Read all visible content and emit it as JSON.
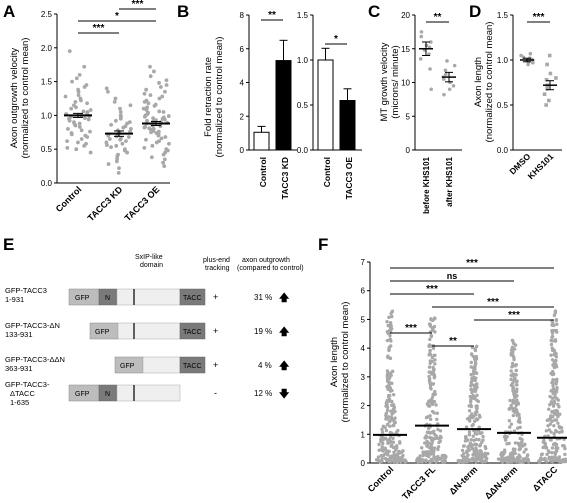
{
  "chart_data": [
    {
      "panel": "A",
      "type": "scatter",
      "ylabel": "Axon outgrowth velocity\n(normalized to control mean)",
      "ylim": [
        0,
        2.5
      ],
      "yticks": [
        "0.0",
        "0.5",
        "1.0",
        "1.5",
        "2.0",
        "2.5"
      ],
      "categories": [
        "Control",
        "TACC3 KD",
        "TACC3 OE"
      ],
      "means": [
        1.0,
        0.73,
        0.88
      ],
      "errors": [
        0.03,
        0.04,
        0.03
      ],
      "points": [
        [
          1.95,
          1.72,
          1.6,
          1.55,
          1.5,
          1.45,
          1.42,
          1.38,
          1.35,
          1.3,
          1.28,
          1.25,
          1.22,
          1.2,
          1.18,
          1.15,
          1.12,
          1.1,
          1.08,
          1.06,
          1.05,
          1.03,
          1.02,
          1.0,
          0.99,
          0.98,
          0.96,
          0.95,
          0.94,
          0.92,
          0.9,
          0.88,
          0.87,
          0.85,
          0.83,
          0.8,
          0.78,
          0.76,
          0.74,
          0.72,
          0.7,
          0.68,
          0.65,
          0.62,
          0.6,
          0.58,
          0.55,
          0.52,
          0.5,
          0.45
        ],
        [
          1.4,
          1.35,
          1.25,
          1.2,
          1.15,
          1.1,
          1.05,
          1.0,
          0.98,
          0.95,
          0.92,
          0.9,
          0.88,
          0.86,
          0.84,
          0.82,
          0.8,
          0.78,
          0.76,
          0.75,
          0.74,
          0.73,
          0.72,
          0.7,
          0.69,
          0.68,
          0.66,
          0.65,
          0.64,
          0.62,
          0.6,
          0.58,
          0.56,
          0.55,
          0.53,
          0.5,
          0.48,
          0.45,
          0.42,
          0.4,
          0.36,
          0.32,
          0.28,
          0.22,
          0.15
        ],
        [
          1.72,
          1.65,
          1.58,
          1.52,
          1.48,
          1.45,
          1.42,
          1.38,
          1.35,
          1.32,
          1.3,
          1.28,
          1.25,
          1.22,
          1.2,
          1.18,
          1.16,
          1.14,
          1.12,
          1.1,
          1.08,
          1.06,
          1.05,
          1.04,
          1.02,
          1.0,
          0.99,
          0.98,
          0.97,
          0.96,
          0.95,
          0.94,
          0.93,
          0.92,
          0.91,
          0.9,
          0.89,
          0.88,
          0.87,
          0.86,
          0.85,
          0.84,
          0.83,
          0.82,
          0.81,
          0.8,
          0.79,
          0.78,
          0.77,
          0.76,
          0.75,
          0.74,
          0.72,
          0.7,
          0.68,
          0.66,
          0.64,
          0.62,
          0.6,
          0.58,
          0.55,
          0.52,
          0.5,
          0.48,
          0.45,
          0.42,
          0.38,
          0.35,
          0.3,
          0.25
        ]
      ],
      "significance": [
        {
          "from": 0,
          "to": 1,
          "label": "***"
        },
        {
          "from": 0,
          "to": 2,
          "label": "*"
        },
        {
          "from": 1,
          "to": 2,
          "label": "***"
        }
      ]
    },
    {
      "panel": "B",
      "type": "bar",
      "ylabel": "Fold retraction rate\n(normalized to control mean)",
      "subplots": [
        {
          "categories": [
            "Control",
            "TACC3 KD"
          ],
          "values": [
            1.05,
            5.3
          ],
          "errors": [
            0.35,
            1.2
          ],
          "colors": [
            "#ffffff",
            "#000000"
          ],
          "ylim": [
            0,
            8
          ],
          "yticks": [
            "0",
            "2",
            "4",
            "6",
            "8"
          ],
          "significance": [
            {
              "from": 0,
              "to": 1,
              "label": "**"
            }
          ]
        },
        {
          "categories": [
            "Control",
            "TACC3 OE"
          ],
          "values": [
            1.0,
            0.55
          ],
          "errors": [
            0.13,
            0.13
          ],
          "colors": [
            "#ffffff",
            "#000000"
          ],
          "ylim": [
            0,
            1.5
          ],
          "yticks": [
            "0.0",
            "0.5",
            "1.0",
            "1.5"
          ],
          "significance": [
            {
              "from": 0,
              "to": 1,
              "label": "*"
            }
          ]
        }
      ]
    },
    {
      "panel": "C",
      "type": "scatter",
      "ylabel": "MT growth velocity\n(microns/ minute)",
      "ylim": [
        0,
        20
      ],
      "yticks": [
        "0",
        "5",
        "10",
        "15",
        "20"
      ],
      "categories": [
        "before KHS101",
        "after KHS101"
      ],
      "means": [
        15.0,
        10.8
      ],
      "errors": [
        1.0,
        0.7
      ],
      "points": [
        [
          17.5,
          16.8,
          16.0,
          15.5,
          15.2,
          14.8,
          14.2,
          13.5,
          12.0,
          9.0
        ],
        [
          13.2,
          12.5,
          11.8,
          11.2,
          10.8,
          10.5,
          10.0,
          9.5,
          9.0,
          8.2
        ]
      ],
      "significance": [
        {
          "from": 0,
          "to": 1,
          "label": "**"
        }
      ]
    },
    {
      "panel": "D",
      "type": "scatter",
      "ylabel": "Axon length\n(normalized to control mean)",
      "ylim": [
        0,
        1.5
      ],
      "yticks": [
        "0.0",
        "0.5",
        "1.0",
        "1.5"
      ],
      "categories": [
        "DMSO",
        "KHS101"
      ],
      "means": [
        1.0,
        0.72
      ],
      "errors": [
        0.02,
        0.05
      ],
      "points": [
        [
          1.07,
          1.05,
          1.03,
          1.02,
          1.01,
          1.0,
          0.99,
          0.98,
          0.97,
          0.95
        ],
        [
          1.05,
          0.95,
          0.85,
          0.8,
          0.78,
          0.72,
          0.68,
          0.62,
          0.55,
          0.5
        ]
      ],
      "significance": [
        {
          "from": 0,
          "to": 1,
          "label": "***"
        }
      ]
    },
    {
      "panel": "F",
      "type": "scatter",
      "ylabel": "Axon length\n(normalized to control mean)",
      "ylim": [
        0,
        7
      ],
      "yticks": [
        "0",
        "1",
        "2",
        "3",
        "4",
        "5",
        "6",
        "7"
      ],
      "categories": [
        "Control",
        "TACC3 FL",
        "ΔN-term",
        "ΔΔN-term",
        "ΔTACC"
      ],
      "means": [
        0.98,
        1.3,
        1.18,
        1.05,
        0.88
      ],
      "significance": [
        {
          "from": 0,
          "to": 4,
          "label": "***"
        },
        {
          "from": 0,
          "to": 3,
          "label": "ns"
        },
        {
          "from": 0,
          "to": 2,
          "label": "***"
        },
        {
          "from": 1,
          "to": 4,
          "label": "***"
        },
        {
          "from": 2,
          "to": 4,
          "label": "***"
        },
        {
          "from": 0,
          "to": 1,
          "label": "***"
        },
        {
          "from": 1,
          "to": 2,
          "label": "**"
        }
      ]
    }
  ],
  "panels": {
    "a": "A",
    "b": "B",
    "c": "C",
    "d": "D",
    "e": "E",
    "f": "F"
  },
  "panel_e": {
    "domain_label_1": "SxIP-like",
    "domain_label_2": "domain",
    "col_tracking_1": "plus-end",
    "col_tracking_2": "tracking",
    "col_outgrowth_1": "axon outgrowth",
    "col_outgrowth_2": "(compared to control)",
    "constructs": [
      {
        "name": "GFP-TACC3",
        "range": "1-931",
        "tracking": "+",
        "percent": "31 %",
        "arrow": "up"
      },
      {
        "name": "GFP-TACC3-ΔN",
        "range": "133-931",
        "tracking": "+",
        "percent": "19 %",
        "arrow": "up"
      },
      {
        "name": "GFP-TACC3-ΔΔN",
        "range": "363-931",
        "tracking": "+",
        "percent": "4 %",
        "arrow": "up"
      },
      {
        "name": "GFP-TACC3-",
        "name2": "ΔTACC",
        "range": "1-635",
        "tracking": "-",
        "percent": "12 %",
        "arrow": "down"
      }
    ],
    "box_gfp": "GFP",
    "box_n": "N",
    "box_tacc": "TACC",
    "colors": {
      "gfp": "#bdbdbd",
      "n": "#7a7a7a",
      "mid": "#efefef",
      "tacc": "#7a7a7a"
    }
  }
}
